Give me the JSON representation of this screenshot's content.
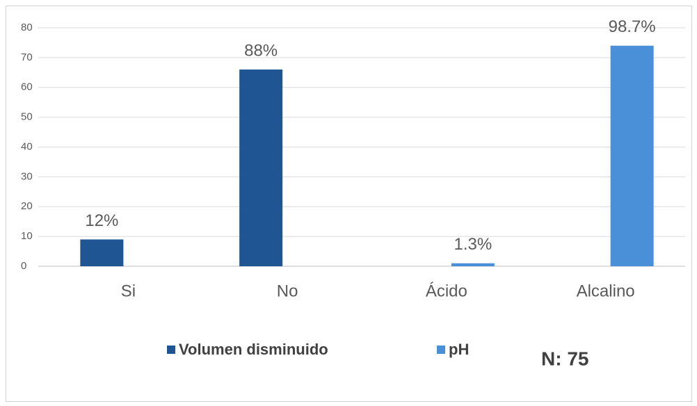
{
  "chart_data": {
    "type": "bar",
    "categories": [
      "Si",
      "No",
      "Ácido",
      "Alcalino"
    ],
    "series": [
      {
        "name": "Volumen disminuido",
        "color": "#1f5592",
        "values": [
          9,
          66,
          null,
          null
        ],
        "value_labels": [
          "12%",
          "88%",
          null,
          null
        ]
      },
      {
        "name": "pH",
        "color": "#4a90d9",
        "values": [
          null,
          null,
          1,
          74
        ],
        "value_labels": [
          null,
          null,
          "1.3%",
          "98.7%"
        ]
      }
    ],
    "ylim": [
      0,
      80
    ],
    "yticks": [
      0,
      10,
      20,
      30,
      40,
      50,
      60,
      70,
      80
    ],
    "grid": true,
    "legend": "bottom",
    "annotation": "N: 75"
  }
}
